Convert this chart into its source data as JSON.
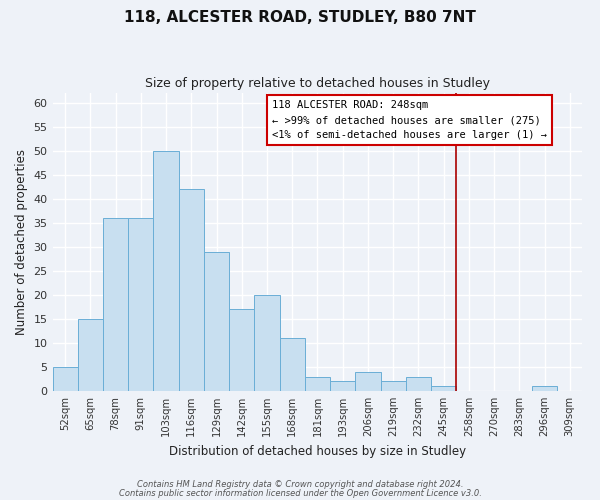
{
  "title": "118, ALCESTER ROAD, STUDLEY, B80 7NT",
  "subtitle": "Size of property relative to detached houses in Studley",
  "xlabel": "Distribution of detached houses by size in Studley",
  "ylabel": "Number of detached properties",
  "bar_labels": [
    "52sqm",
    "65sqm",
    "78sqm",
    "91sqm",
    "103sqm",
    "116sqm",
    "129sqm",
    "142sqm",
    "155sqm",
    "168sqm",
    "181sqm",
    "193sqm",
    "206sqm",
    "219sqm",
    "232sqm",
    "245sqm",
    "258sqm",
    "270sqm",
    "283sqm",
    "296sqm",
    "309sqm"
  ],
  "bar_heights": [
    5,
    15,
    36,
    36,
    50,
    42,
    29,
    17,
    20,
    11,
    3,
    2,
    4,
    2,
    3,
    1,
    0,
    0,
    0,
    1,
    0
  ],
  "bar_color": "#c8dff0",
  "bar_edge_color": "#6aaed6",
  "ylim": [
    0,
    62
  ],
  "yticks": [
    0,
    5,
    10,
    15,
    20,
    25,
    30,
    35,
    40,
    45,
    50,
    55,
    60
  ],
  "vline_index": 15.5,
  "vline_color": "#aa0000",
  "annotation_title": "118 ALCESTER ROAD: 248sqm",
  "annotation_line1": "← >99% of detached houses are smaller (275)",
  "annotation_line2": "<1% of semi-detached houses are larger (1) →",
  "footer1": "Contains HM Land Registry data © Crown copyright and database right 2024.",
  "footer2": "Contains public sector information licensed under the Open Government Licence v3.0.",
  "bg_color": "#eef2f8",
  "grid_color": "#ffffff"
}
